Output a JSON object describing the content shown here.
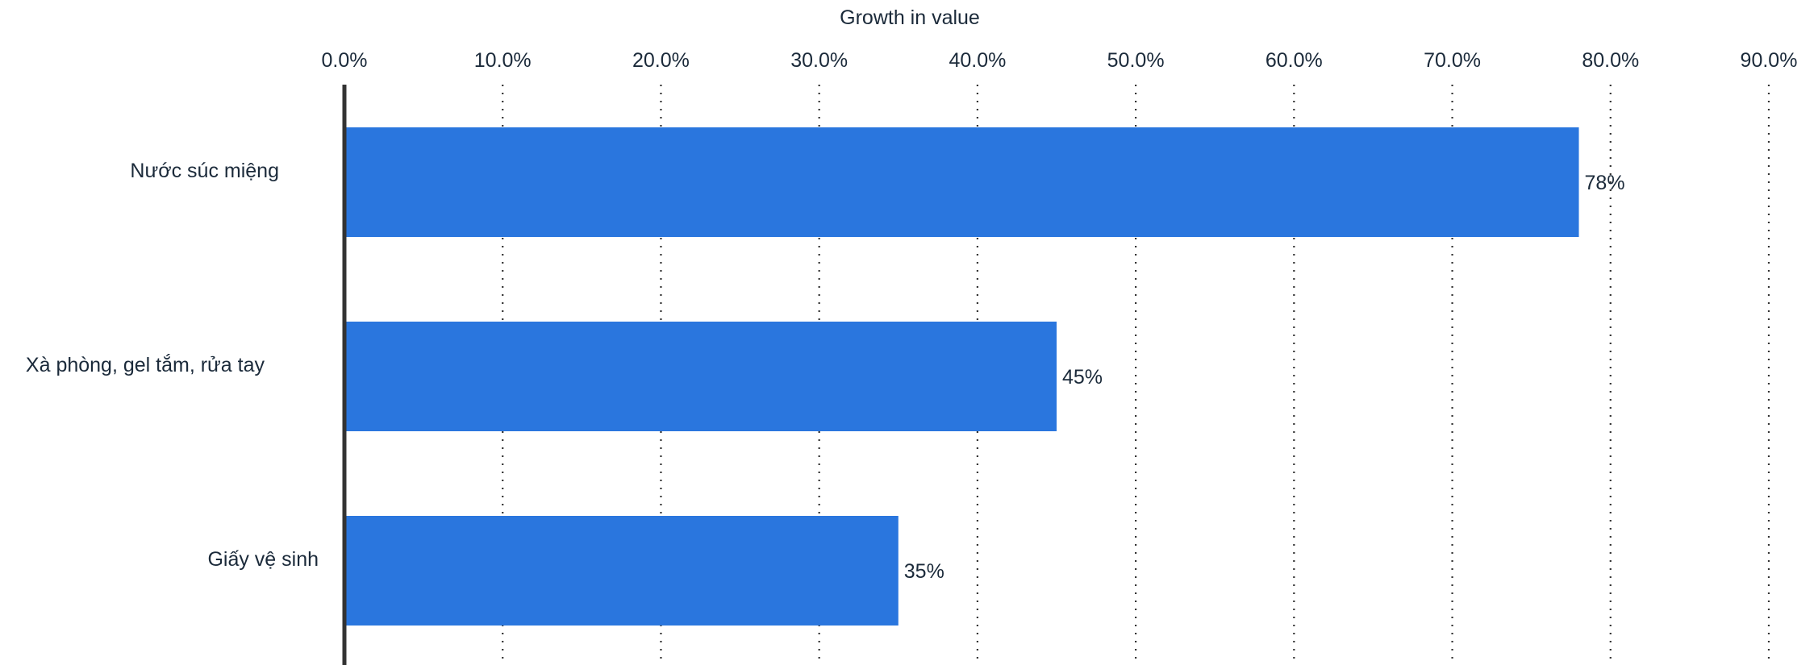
{
  "chart_data": {
    "type": "bar",
    "orientation": "horizontal",
    "title": "",
    "xlabel": "Growth in value",
    "ylabel": "",
    "categories": [
      "Nước súc miệng",
      "Xà phòng, gel tắm, rửa tay",
      "Giấy vệ sinh"
    ],
    "values": [
      78,
      45,
      35
    ],
    "value_labels": [
      "78%",
      "45%",
      "35%"
    ],
    "xlim": [
      0,
      90
    ],
    "x_ticks": [
      0,
      10,
      20,
      30,
      40,
      50,
      60,
      70,
      80,
      90
    ],
    "x_tick_labels": [
      "0.0%",
      "10.0%",
      "20.0%",
      "30.0%",
      "40.0%",
      "50.0%",
      "60.0%",
      "70.0%",
      "80.0%",
      "90.0%"
    ],
    "x_axis_position": "top",
    "grid": true,
    "grid_style": "dotted",
    "bar_color": "#2a76de"
  }
}
